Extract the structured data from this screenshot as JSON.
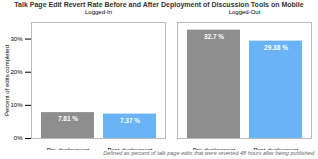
{
  "chart_data": {
    "type": "bar",
    "title": "Talk Page Edit Revert Rate Before and After Deployment of Discussion Tools on Mobile",
    "ylabel": "Percent of edits completed",
    "caption": "Defined as percent of talk page edits that were reverted 48 hours after being published",
    "categories": [
      "Pre-deployment",
      "Post-deployment"
    ],
    "colors": [
      "#8e8e8e",
      "#6ab4f5"
    ],
    "series": [
      {
        "name": "Logged-In",
        "values": [
          7.81,
          7.37
        ],
        "value_labels": [
          "7.81 %",
          "7.37 %"
        ]
      },
      {
        "name": "Logged-Out",
        "values": [
          32.7,
          29.38
        ],
        "value_labels": [
          "32.7 %",
          "29.38 %"
        ]
      }
    ],
    "ylim": [
      0,
      35
    ],
    "yticks": [
      {
        "value": 0,
        "label": "0%"
      },
      {
        "value": 10,
        "label": "10%"
      },
      {
        "value": 20,
        "label": "20%"
      },
      {
        "value": 30,
        "label": "30%"
      }
    ],
    "grid": false,
    "data_labels": true
  }
}
